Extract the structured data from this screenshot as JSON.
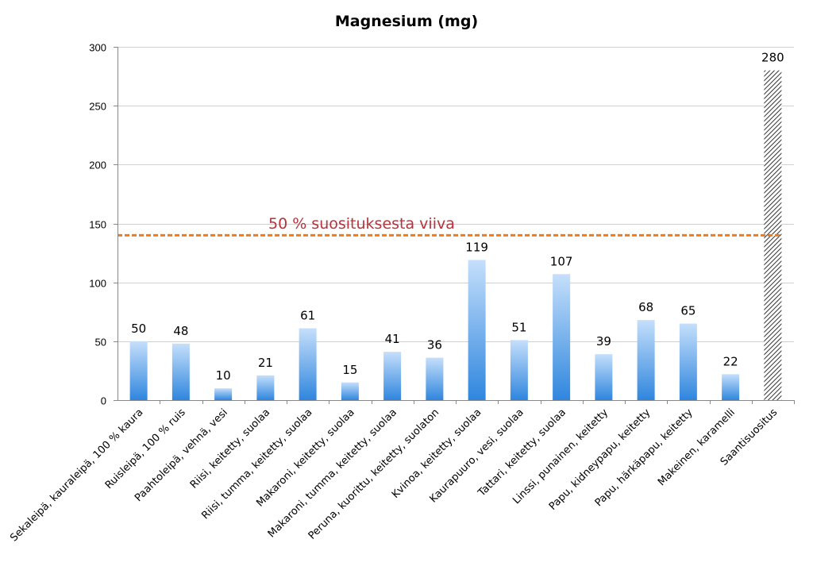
{
  "chart_data": {
    "type": "bar",
    "title": "Magnesium (mg)",
    "xlabel": "",
    "ylabel": "",
    "ylim": [
      0,
      300
    ],
    "yticks": [
      0,
      50,
      100,
      150,
      200,
      250,
      300
    ],
    "grid": true,
    "legend": "none",
    "categories": [
      "Sekaleipä, kauraleipä, 100 % kaura",
      "Ruisleipä, 100 % ruis",
      "Paahtoleipä, vehnä, vesi",
      "Riisi, keitetty, suolaa",
      "Riisi, tumma, keitetty, suolaa",
      "Makaroni, keitetty, suolaa",
      "Makaroni, tumma, keitetty, suolaa",
      "Peruna, kuorittu, keitetty, suolaton",
      "Kvinoa, keitetty, suolaa",
      "Kaurapuuro, vesi, suolaa",
      "Tattari, keitetty, suolaa",
      "Linssi, punainen, keitetty",
      "Papu, kidneypapu, keitetty",
      "Papu, härkäpapu, keitetty",
      "Makeinen, karamelli",
      "Saantisuositus"
    ],
    "values": [
      50,
      48,
      10,
      21,
      61,
      15,
      41,
      36,
      119,
      51,
      107,
      39,
      68,
      65,
      22,
      280
    ],
    "hatched_categories": [
      "Saantisuositus"
    ],
    "reference_line": {
      "value": 140,
      "label": "50 % suosituksesta viiva",
      "color": "#f07a1c",
      "label_color": "#b8323c"
    },
    "colors": {
      "bar_top": "#c5dffb",
      "bar_bottom": "#2f86de",
      "hatch": "#333333",
      "grid": "#d0d0d0"
    }
  }
}
